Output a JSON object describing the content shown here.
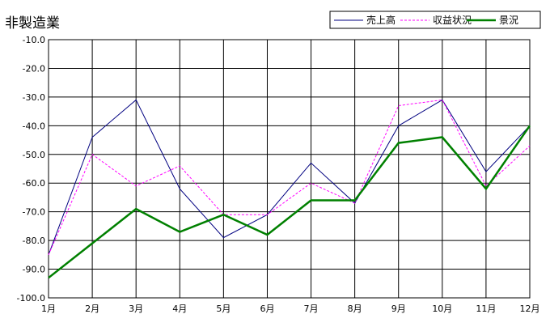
{
  "chart_data": {
    "type": "line",
    "title": "非製造業",
    "xlabel": "",
    "ylabel": "",
    "categories": [
      "1月",
      "2月",
      "3月",
      "4月",
      "5月",
      "6月",
      "7月",
      "8月",
      "9月",
      "10月",
      "11月",
      "12月"
    ],
    "ylim": [
      -100,
      -10
    ],
    "yticks": [
      "-10.0",
      "-20.0",
      "-30.0",
      "-40.0",
      "-50.0",
      "-60.0",
      "-70.0",
      "-80.0",
      "-90.0",
      "-100.0"
    ],
    "grid": true,
    "legend_position": "top-right",
    "series": [
      {
        "name": "売上高",
        "color": "#000080",
        "style": "solid",
        "width": 1,
        "values": [
          -85,
          -44,
          -31,
          -62,
          -79,
          -71,
          -53,
          -67,
          -40,
          -31,
          -56,
          -40
        ]
      },
      {
        "name": "収益状況",
        "color": "#ff00ff",
        "style": "dashed",
        "width": 1,
        "values": [
          -85,
          -50,
          -61,
          -54,
          -71,
          -71,
          -60,
          -67,
          -33,
          -31,
          -61,
          -47
        ]
      },
      {
        "name": "景況",
        "color": "#008000",
        "style": "solid",
        "width": 2.5,
        "values": [
          -93,
          -81,
          -69,
          -77,
          -71,
          -78,
          -66,
          -66,
          -46,
          -44,
          -62,
          -40
        ]
      }
    ]
  }
}
